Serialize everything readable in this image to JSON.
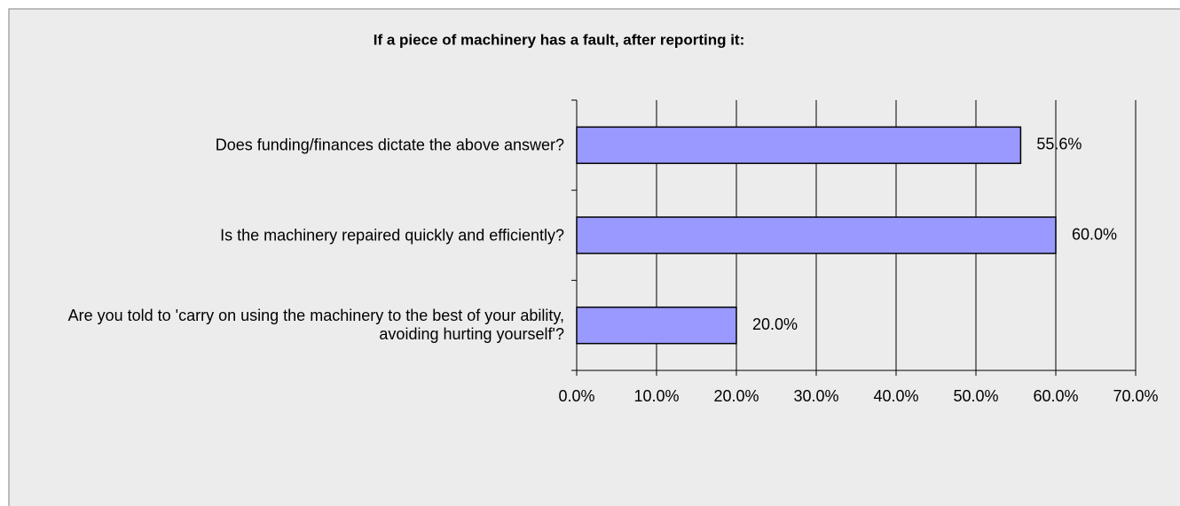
{
  "chart_data": {
    "type": "bar",
    "orientation": "horizontal",
    "title": "If a piece of machinery has a fault, after reporting it:",
    "categories": [
      "Does funding/finances dictate the above answer?",
      "Is the machinery repaired quickly and efficiently?",
      "Are you told to 'carry on using the machinery to the best of your ability, avoiding hurting yourself'?"
    ],
    "values": [
      55.6,
      60.0,
      20.0
    ],
    "value_labels": [
      "55.6%",
      "60.0%",
      "20.0%"
    ],
    "color": "#9999ff",
    "xlim": [
      0,
      70
    ],
    "xticks": [
      {
        "value": 0,
        "label": "0.0%"
      },
      {
        "value": 10,
        "label": "10.0%"
      },
      {
        "value": 20,
        "label": "20.0%"
      },
      {
        "value": 30,
        "label": "30.0%"
      },
      {
        "value": 40,
        "label": "40.0%"
      },
      {
        "value": 50,
        "label": "50.0%"
      },
      {
        "value": 60,
        "label": "60.0%"
      },
      {
        "value": 70,
        "label": "70.0%"
      }
    ],
    "grid": true
  }
}
